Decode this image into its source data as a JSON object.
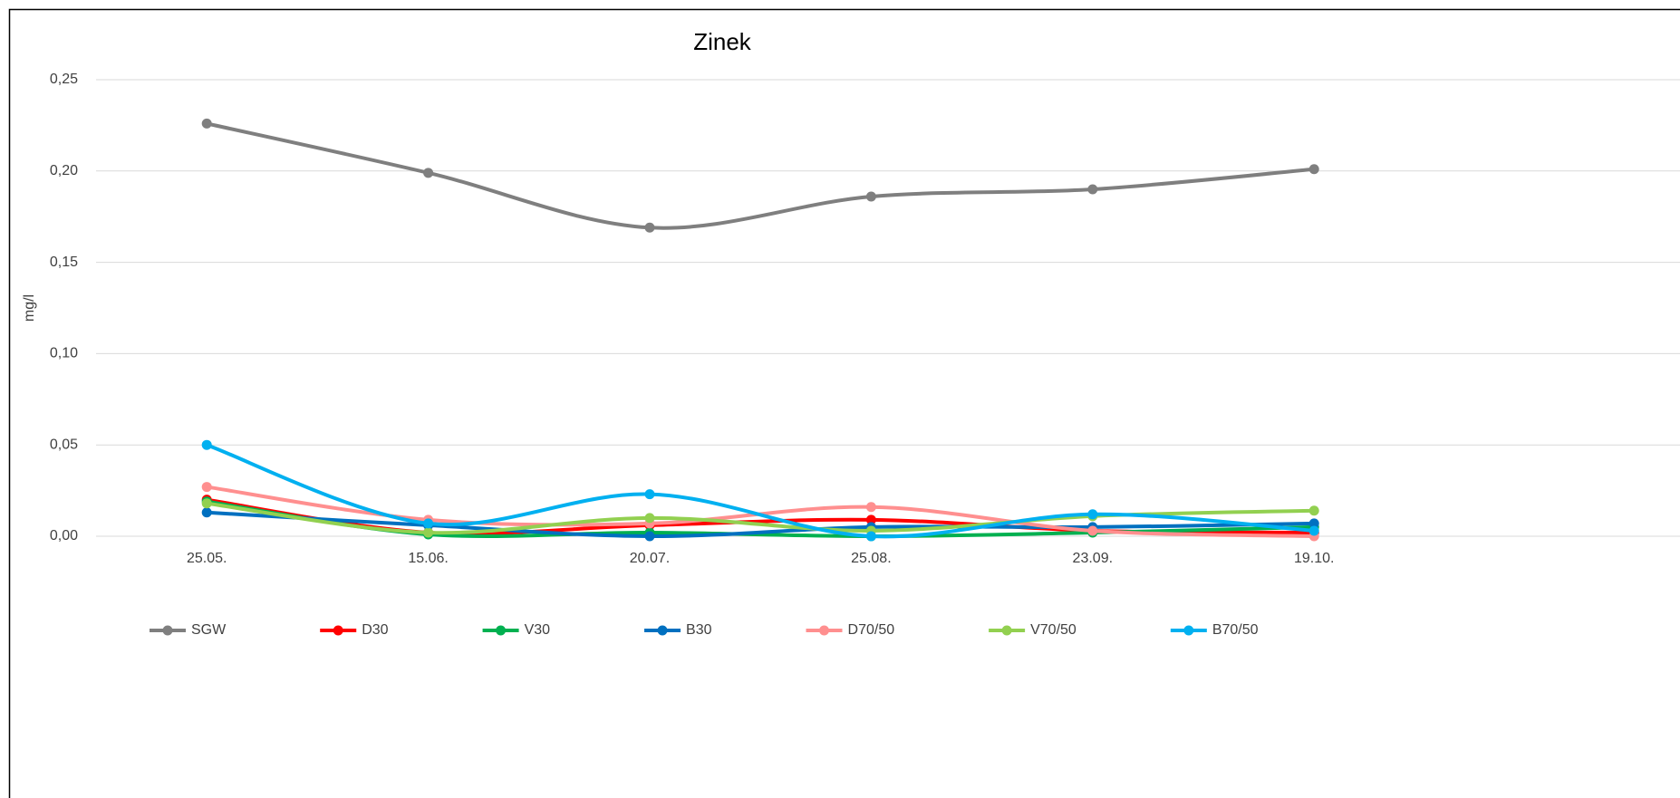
{
  "chart_data": {
    "type": "line",
    "title": "Zinek",
    "y_label": "mg/l",
    "categories": [
      "25.05.",
      "15.06.",
      "20.07.",
      "25.08.",
      "23.09.",
      "19.10."
    ],
    "ylim": [
      0,
      0.25
    ],
    "yticks": [
      {
        "value": 0,
        "label": "0,00"
      },
      {
        "value": 0.05,
        "label": "0,05"
      },
      {
        "value": 0.1,
        "label": "0,10"
      },
      {
        "value": 0.15,
        "label": "0,15"
      },
      {
        "value": 0.2,
        "label": "0,20"
      },
      {
        "value": 0.25,
        "label": "0,25"
      }
    ],
    "grid": true,
    "smooth": true,
    "legend": "bottom",
    "series": [
      {
        "name": "SGW",
        "color": "#7f7f7f",
        "values": [
          0.226,
          0.199,
          0.169,
          0.186,
          0.19,
          0.201
        ]
      },
      {
        "name": "D30",
        "color": "#ff0000",
        "values": [
          0.02,
          0.002,
          0.006,
          0.009,
          0.003,
          0.002
        ]
      },
      {
        "name": "V30",
        "color": "#00b050",
        "values": [
          0.019,
          0.001,
          0.002,
          0.0,
          0.002,
          0.005
        ]
      },
      {
        "name": "B30",
        "color": "#0070c0",
        "values": [
          0.013,
          0.006,
          0.0,
          0.005,
          0.005,
          0.007
        ]
      },
      {
        "name": "D70/50",
        "color": "#ff8f8f",
        "values": [
          0.027,
          0.009,
          0.007,
          0.016,
          0.003,
          0.0
        ]
      },
      {
        "name": "V70/50",
        "color": "#92d050",
        "values": [
          0.018,
          0.002,
          0.01,
          0.003,
          0.011,
          0.014
        ]
      },
      {
        "name": "B70/50",
        "color": "#00b0f0",
        "values": [
          0.05,
          0.007,
          0.023,
          0.0,
          0.012,
          0.003
        ]
      }
    ]
  }
}
